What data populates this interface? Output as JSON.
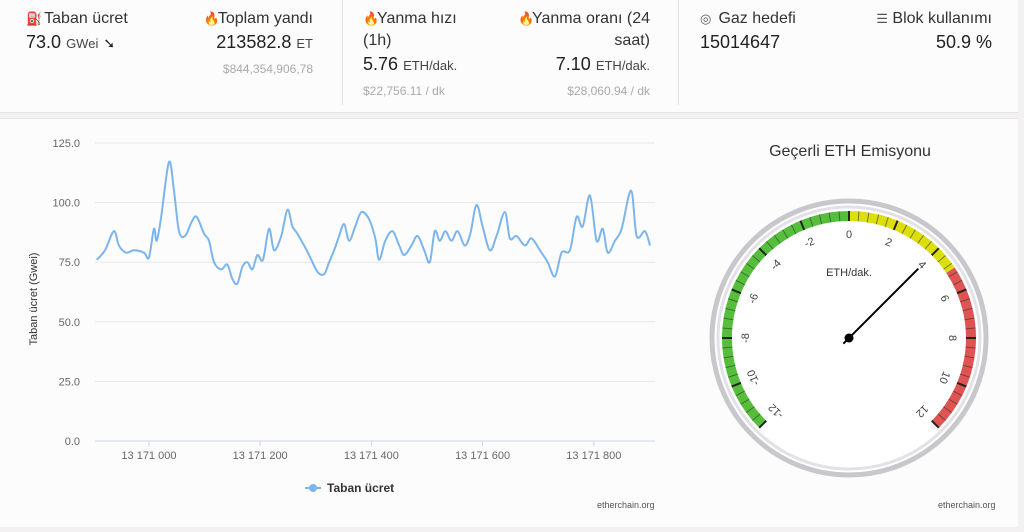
{
  "stats": {
    "base_fee": {
      "label": "Taban ücret",
      "value": "73.0",
      "unit": "GWei",
      "trend_icon": "arrow-down-right-icon"
    },
    "total_burned": {
      "label": "Toplam yandı",
      "value": "213582.8",
      "unit": "ET",
      "usd": "$844,354,906,78"
    },
    "burn_rate_1h": {
      "label": "Yanma hızı (1h)",
      "value": "5.76",
      "unit": "ETH/dak.",
      "usd": "$22,756.11 / dk"
    },
    "burn_rate_24h": {
      "label": "Yanma oranı (24 saat)",
      "value": "7.10",
      "unit": "ETH/dak.",
      "usd": "$28,060.94 / dk"
    },
    "gas_target": {
      "label": "Gaz hedefi",
      "value": "15014647"
    },
    "block_usage": {
      "label": "Blok kullanımı",
      "value": "50.9 %"
    }
  },
  "chart_data": {
    "type": "line",
    "title": "",
    "xlabel": "",
    "ylabel": "Taban ücret (Gwei)",
    "ylim": [
      0,
      125
    ],
    "xlim": [
      13170903,
      13171910
    ],
    "yticks": [
      "0.0",
      "25.0",
      "50.0",
      "75.0",
      "100.0",
      "125.0"
    ],
    "xticks": [
      {
        "v": 13171000,
        "label": "13 171 000"
      },
      {
        "v": 13171200,
        "label": "13 171 200"
      },
      {
        "v": 13171400,
        "label": "13 171 400"
      },
      {
        "v": 13171600,
        "label": "13 171 600"
      },
      {
        "v": 13171800,
        "label": "13 171 800"
      }
    ],
    "legend": "Taban ücret",
    "legend_position": "bottom",
    "color": "#7cb5ec",
    "grid": true,
    "x": [
      13170906,
      13170921,
      13170937,
      13170946,
      13170959,
      13170973,
      13170991,
      13171000,
      13171009,
      13171014,
      13171022,
      13171036,
      13171045,
      13171054,
      13171065,
      13171077,
      13171086,
      13171099,
      13171108,
      13171117,
      13171130,
      13171141,
      13171150,
      13171159,
      13171168,
      13171177,
      13171186,
      13171195,
      13171205,
      13171216,
      13171225,
      13171238,
      13171249,
      13171258,
      13171267,
      13171279,
      13171288,
      13171303,
      13171315,
      13171324,
      13171333,
      13171342,
      13171351,
      13171360,
      13171371,
      13171382,
      13171396,
      13171407,
      13171414,
      13171425,
      13171438,
      13171450,
      13171459,
      13171472,
      13171483,
      13171495,
      13171505,
      13171514,
      13171523,
      13171533,
      13171544,
      13171555,
      13171568,
      13171578,
      13171589,
      13171600,
      13171613,
      13171625,
      13171640,
      13171649,
      13171661,
      13171676,
      13171688,
      13171703,
      13171717,
      13171730,
      13171742,
      13171757,
      13171769,
      13171780,
      13171793,
      13171805,
      13171816,
      13171825,
      13171838,
      13171850,
      13171867,
      13171877,
      13171892,
      13171901
    ],
    "y": [
      76,
      80,
      88,
      82,
      79,
      80,
      79,
      77,
      89,
      84,
      94,
      117,
      105,
      88,
      86,
      92,
      94,
      87,
      84,
      75,
      72,
      74,
      68,
      66,
      73,
      75,
      72,
      78,
      76,
      89,
      80,
      86,
      97,
      90,
      87,
      82,
      78,
      71,
      70,
      75,
      80,
      86,
      91,
      84,
      90,
      96,
      93,
      85,
      76,
      84,
      88,
      82,
      78,
      82,
      86,
      80,
      75,
      88,
      84,
      88,
      84,
      88,
      82,
      87,
      99,
      90,
      80,
      86,
      96,
      85,
      86,
      82,
      85,
      80,
      75,
      69,
      79,
      80,
      94,
      90,
      103,
      84,
      89,
      79,
      84,
      89,
      105,
      86,
      88,
      82
    ]
  },
  "credit_left": "etherchain.org",
  "gauge": {
    "title": "Geçerli ETH Emisyonu",
    "unit": "ETH/dak.",
    "min": -12,
    "max": 12,
    "value": 4.0,
    "labels": [
      "-12",
      "-10",
      "-8",
      "-6",
      "-4",
      "-2",
      "0",
      "2",
      "4",
      "6",
      "8",
      "10",
      "12"
    ],
    "bands": [
      {
        "from": -12,
        "to": 0,
        "color": "#55bf3b"
      },
      {
        "from": 0,
        "to": 5,
        "color": "#dddf0d"
      },
      {
        "from": 5,
        "to": 12,
        "color": "#df5353"
      }
    ]
  },
  "credit_right": "etherchain.org"
}
